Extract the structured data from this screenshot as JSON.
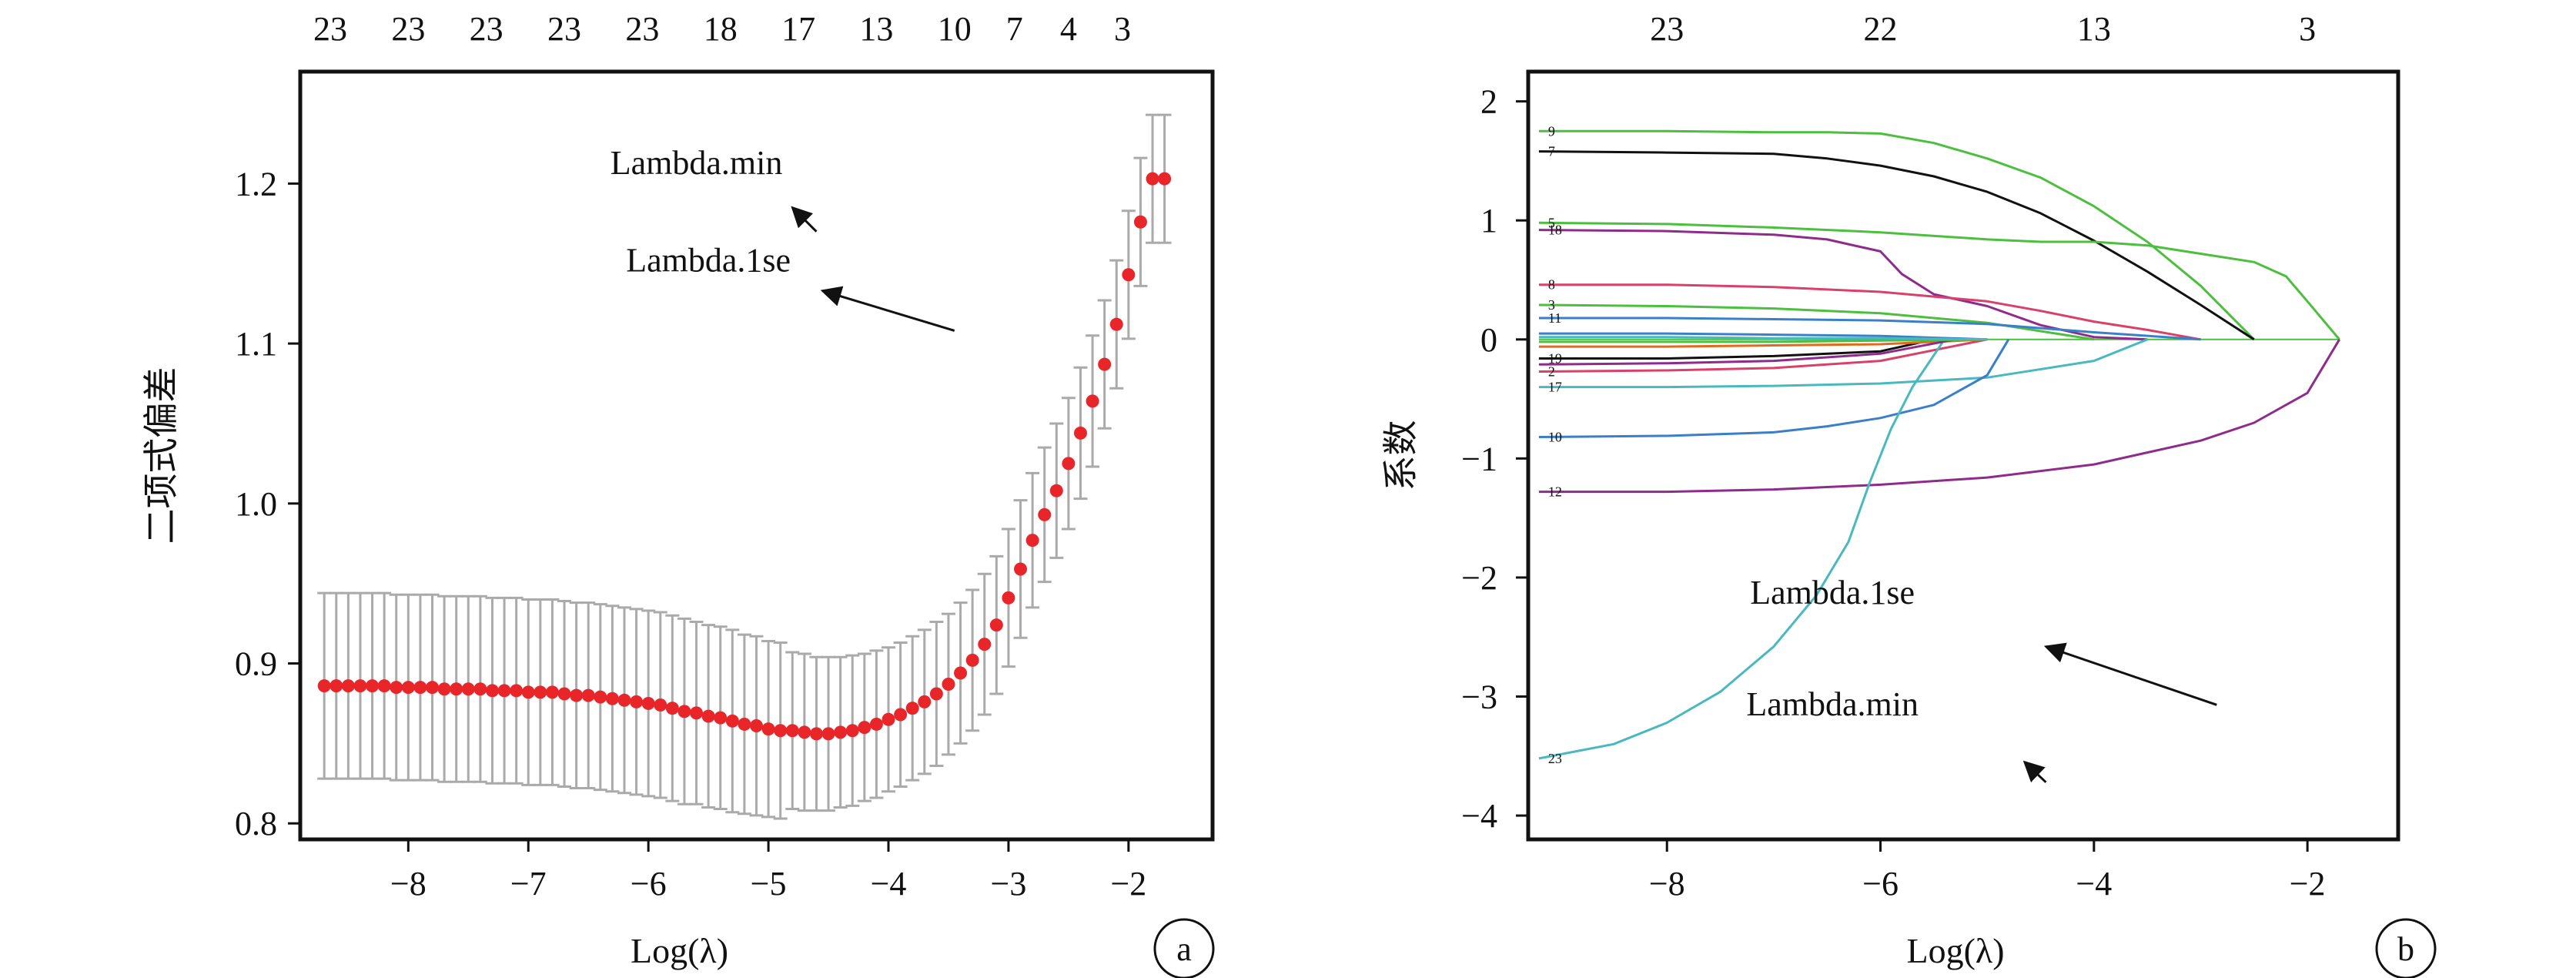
{
  "chart_data": [
    {
      "panel": "a",
      "type": "scatter",
      "xlabel": "Log(λ)",
      "ylabel": "二项式偏差",
      "xlim": [
        -8.9,
        -1.3
      ],
      "ylim": [
        0.79,
        1.27
      ],
      "xticks": [
        -8,
        -7,
        -6,
        -5,
        -4,
        -3,
        -2
      ],
      "xtick_labels": [
        "−8",
        "−7",
        "−6",
        "−5",
        "−4",
        "−3",
        "−2"
      ],
      "yticks": [
        0.8,
        0.9,
        1.0,
        1.1,
        1.2
      ],
      "ytick_labels": [
        "0.8",
        "0.9",
        "1.0",
        "1.1",
        "1.2"
      ],
      "top_axis": {
        "x": [
          -8.65,
          -8.0,
          -7.35,
          -6.7,
          -6.05,
          -5.4,
          -4.75,
          -4.1,
          -3.45,
          -2.95,
          -2.5,
          -2.05
        ],
        "labels": [
          "23",
          "23",
          "23",
          "23",
          "23",
          "18",
          "17",
          "13",
          "10",
          "7",
          "4",
          "3"
        ]
      },
      "x": [
        -8.7,
        -8.6,
        -8.5,
        -8.4,
        -8.3,
        -8.2,
        -8.1,
        -8.0,
        -7.9,
        -7.8,
        -7.7,
        -7.6,
        -7.5,
        -7.4,
        -7.3,
        -7.2,
        -7.1,
        -7.0,
        -6.9,
        -6.8,
        -6.7,
        -6.6,
        -6.5,
        -6.4,
        -6.3,
        -6.2,
        -6.1,
        -6.0,
        -5.9,
        -5.8,
        -5.7,
        -5.6,
        -5.5,
        -5.4,
        -5.3,
        -5.2,
        -5.1,
        -5.0,
        -4.9,
        -4.8,
        -4.7,
        -4.6,
        -4.5,
        -4.4,
        -4.3,
        -4.2,
        -4.1,
        -4.0,
        -3.9,
        -3.8,
        -3.7,
        -3.6,
        -3.5,
        -3.4,
        -3.3,
        -3.2,
        -3.1,
        -3.0,
        -2.9,
        -2.8,
        -2.7,
        -2.6,
        -2.5,
        -2.4,
        -2.3,
        -2.2,
        -2.1,
        -2.0,
        -1.9,
        -1.8,
        -1.7
      ],
      "y": [
        0.886,
        0.886,
        0.886,
        0.886,
        0.886,
        0.886,
        0.885,
        0.885,
        0.885,
        0.885,
        0.884,
        0.884,
        0.884,
        0.884,
        0.883,
        0.883,
        0.883,
        0.882,
        0.882,
        0.882,
        0.881,
        0.88,
        0.88,
        0.879,
        0.878,
        0.877,
        0.876,
        0.875,
        0.874,
        0.872,
        0.87,
        0.869,
        0.867,
        0.866,
        0.864,
        0.862,
        0.861,
        0.859,
        0.858,
        0.858,
        0.857,
        0.856,
        0.856,
        0.857,
        0.858,
        0.86,
        0.862,
        0.865,
        0.868,
        0.872,
        0.876,
        0.881,
        0.887,
        0.894,
        0.902,
        0.912,
        0.924,
        0.941,
        0.959,
        0.977,
        0.993,
        1.008,
        1.025,
        1.044,
        1.064,
        1.087,
        1.112,
        1.143,
        1.176,
        1.203,
        1.203
      ],
      "err_half": [
        0.058,
        0.058,
        0.058,
        0.058,
        0.058,
        0.058,
        0.058,
        0.058,
        0.058,
        0.058,
        0.058,
        0.058,
        0.058,
        0.058,
        0.058,
        0.058,
        0.058,
        0.058,
        0.058,
        0.058,
        0.058,
        0.058,
        0.058,
        0.058,
        0.058,
        0.058,
        0.058,
        0.058,
        0.058,
        0.058,
        0.058,
        0.057,
        0.057,
        0.057,
        0.057,
        0.056,
        0.056,
        0.055,
        0.055,
        0.049,
        0.049,
        0.048,
        0.048,
        0.047,
        0.047,
        0.046,
        0.046,
        0.045,
        0.045,
        0.045,
        0.045,
        0.045,
        0.044,
        0.044,
        0.044,
        0.044,
        0.043,
        0.043,
        0.043,
        0.042,
        0.042,
        0.042,
        0.041,
        0.041,
        0.041,
        0.04,
        0.04,
        0.04,
        0.04,
        0.04,
        0.04
      ],
      "annotations": [
        {
          "text": "Lambda.min",
          "x": -5.6,
          "y": 1.206
        },
        {
          "text": "Lambda.1se",
          "x": -5.5,
          "y": 1.145
        }
      ],
      "arrows": [
        {
          "from": [
            -4.6,
            1.17
          ],
          "to": [
            -4.8,
            1.185
          ]
        },
        {
          "from": [
            -3.45,
            1.108
          ],
          "to": [
            -4.55,
            1.133
          ]
        }
      ],
      "point_color": "#e8262a",
      "errorbar_color": "#aaaaaa"
    },
    {
      "panel": "b",
      "type": "line",
      "xlabel": "Log(λ)",
      "ylabel": "系数",
      "xlim": [
        -9.3,
        -1.15
      ],
      "ylim": [
        -4.2,
        2.25
      ],
      "xticks": [
        -8,
        -6,
        -4,
        -2
      ],
      "xtick_labels": [
        "−8",
        "−6",
        "−4",
        "−2"
      ],
      "yticks": [
        -4,
        -3,
        -2,
        -1,
        0,
        1,
        2
      ],
      "ytick_labels": [
        "−4",
        "−3",
        "−2",
        "−1",
        "0",
        "1",
        "2"
      ],
      "top_axis": {
        "x": [
          -8.0,
          -6.0,
          -4.0,
          -2.0
        ],
        "labels": [
          "23",
          "22",
          "13",
          "3"
        ]
      },
      "x_start": -9.2,
      "annotations": [
        {
          "text": "Lambda.1se",
          "x": -6.45,
          "y": -2.22
        },
        {
          "text": "Lambda.min",
          "x": -6.45,
          "y": -3.16
        }
      ],
      "arrows": [
        {
          "from": [
            -2.85,
            -3.07
          ],
          "to": [
            -4.45,
            -2.58
          ]
        },
        {
          "from": [
            -4.45,
            -3.72
          ],
          "to": [
            -4.65,
            -3.55
          ]
        }
      ],
      "series": [
        {
          "name": "9",
          "color": "#4cbf3e",
          "x": [
            -9.2,
            -8,
            -7,
            -6.5,
            -6,
            -5.5,
            -5,
            -4.5,
            -4,
            -3.5,
            -3,
            -2.5
          ],
          "y": [
            1.75,
            1.75,
            1.74,
            1.74,
            1.73,
            1.65,
            1.52,
            1.36,
            1.12,
            0.82,
            0.45,
            0.0
          ]
        },
        {
          "name": "7",
          "color": "#111111",
          "x": [
            -9.2,
            -8,
            -7,
            -6.5,
            -6,
            -5.5,
            -5,
            -4.5,
            -4,
            -3.5,
            -3,
            -2.5
          ],
          "y": [
            1.58,
            1.57,
            1.56,
            1.52,
            1.46,
            1.37,
            1.24,
            1.06,
            0.83,
            0.57,
            0.29,
            0.0
          ]
        },
        {
          "name": "5",
          "color": "#4cbf3e",
          "x": [
            -9.2,
            -8,
            -7,
            -6,
            -5,
            -4.5,
            -4,
            -3.5,
            -3,
            -2.5,
            -2.2,
            -2,
            -1.7
          ],
          "y": [
            0.98,
            0.97,
            0.94,
            0.9,
            0.84,
            0.82,
            0.82,
            0.79,
            0.72,
            0.65,
            0.53,
            0.32,
            0.0
          ]
        },
        {
          "name": "18",
          "color": "#8e2c8c",
          "x": [
            -9.2,
            -8,
            -7,
            -6.5,
            -6,
            -5.8,
            -5.5,
            -5,
            -4.5,
            -4,
            -3.5
          ],
          "y": [
            0.92,
            0.91,
            0.88,
            0.84,
            0.74,
            0.55,
            0.38,
            0.28,
            0.12,
            0.02,
            0.0
          ]
        },
        {
          "name": "8",
          "color": "#d9406a",
          "x": [
            -9.2,
            -8,
            -7,
            -6,
            -5,
            -4.5,
            -4,
            -3.5,
            -3
          ],
          "y": [
            0.46,
            0.46,
            0.44,
            0.4,
            0.32,
            0.24,
            0.15,
            0.08,
            0.0
          ]
        },
        {
          "name": "3",
          "color": "#4cbf3e",
          "x": [
            -9.2,
            -8,
            -7,
            -6,
            -5,
            -4.5,
            -4
          ],
          "y": [
            0.29,
            0.28,
            0.26,
            0.22,
            0.14,
            0.07,
            0.0
          ]
        },
        {
          "name": "11",
          "color": "#3a7fc9",
          "x": [
            -9.2,
            -8,
            -7,
            -6,
            -5,
            -4,
            -3
          ],
          "y": [
            0.18,
            0.18,
            0.17,
            0.16,
            0.13,
            0.06,
            0.0
          ]
        },
        {
          "name": "19",
          "color": "#111111",
          "x": [
            -9.2,
            -8,
            -7,
            -6,
            -5.5
          ],
          "y": [
            -0.16,
            -0.16,
            -0.14,
            -0.1,
            0.0
          ]
        },
        {
          "name": "2",
          "color": "#d9406a",
          "x": [
            -9.2,
            -8,
            -7,
            -6,
            -5
          ],
          "y": [
            -0.27,
            -0.26,
            -0.24,
            -0.18,
            0.0
          ]
        },
        {
          "name": "17",
          "color": "#4ab8bf",
          "x": [
            -9.2,
            -8,
            -7,
            -6,
            -5,
            -4,
            -3.5
          ],
          "y": [
            -0.4,
            -0.4,
            -0.39,
            -0.37,
            -0.32,
            -0.18,
            0.0
          ]
        },
        {
          "name": "10",
          "color": "#3a7fc9",
          "x": [
            -9.2,
            -8,
            -7,
            -6.5,
            -6,
            -5.5,
            -5,
            -4.8
          ],
          "y": [
            -0.82,
            -0.81,
            -0.78,
            -0.73,
            -0.66,
            -0.55,
            -0.3,
            0.0
          ]
        },
        {
          "name": "12",
          "color": "#8e2c8c",
          "x": [
            -9.2,
            -8,
            -7,
            -6,
            -5,
            -4,
            -3,
            -2.5,
            -2,
            -1.7
          ],
          "y": [
            -1.28,
            -1.28,
            -1.26,
            -1.22,
            -1.16,
            -1.05,
            -0.85,
            -0.7,
            -0.45,
            0.0
          ]
        },
        {
          "name": "23",
          "color": "#4ab8bf",
          "x": [
            -9.2,
            -8.5,
            -8,
            -7.5,
            -7,
            -6.6,
            -6.3,
            -6.1,
            -5.9,
            -5.7,
            -5.4
          ],
          "y": [
            -3.52,
            -3.4,
            -3.22,
            -2.96,
            -2.58,
            -2.15,
            -1.7,
            -1.2,
            -0.75,
            -0.4,
            0.0
          ]
        },
        {
          "name": "",
          "color": "#e06b1f",
          "x": [
            -9.2,
            -8,
            -7,
            -6,
            -5.5,
            -5
          ],
          "y": [
            -0.06,
            -0.06,
            -0.05,
            -0.04,
            -0.02,
            0.0
          ]
        },
        {
          "name": "",
          "color": "#3a7fc9",
          "x": [
            -9.2,
            -8,
            -7,
            -6,
            -5
          ],
          "y": [
            0.05,
            0.05,
            0.04,
            0.03,
            0.0
          ]
        },
        {
          "name": "",
          "color": "#8e2c8c",
          "x": [
            -9.2,
            -8,
            -7,
            -6,
            -5.3
          ],
          "y": [
            -0.21,
            -0.2,
            -0.18,
            -0.12,
            0.0
          ]
        },
        {
          "name": "",
          "color": "#4cbf3e",
          "x": [
            -9.2,
            -8,
            -7,
            -6,
            -5
          ],
          "y": [
            -0.02,
            -0.02,
            -0.02,
            -0.01,
            0.0
          ]
        },
        {
          "name": "",
          "color": "#4ab8bf",
          "x": [
            -9.2,
            -8,
            -7,
            -6,
            -5
          ],
          "y": [
            0.02,
            0.02,
            0.01,
            0.01,
            0.0
          ]
        }
      ]
    }
  ]
}
